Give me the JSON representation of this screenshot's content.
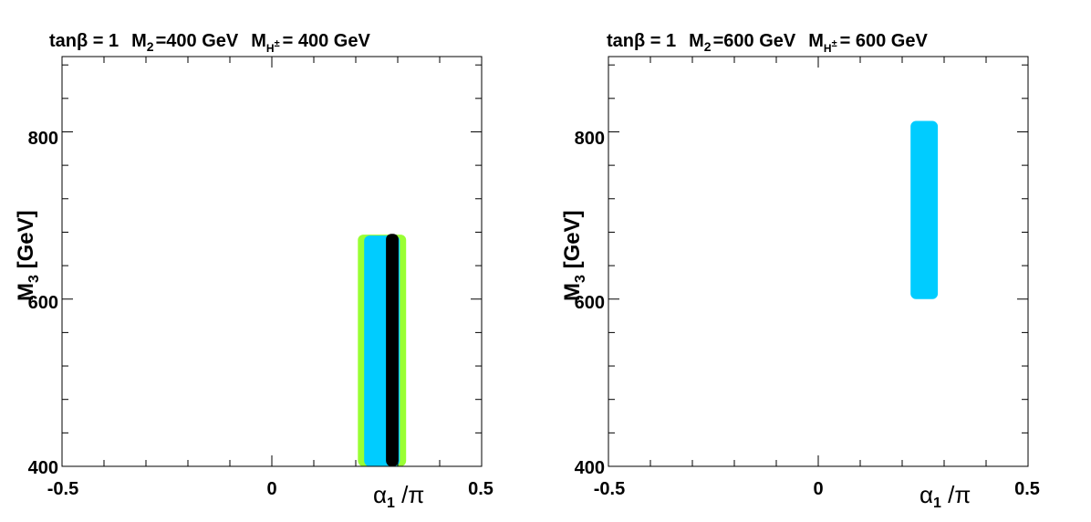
{
  "figure": {
    "background": "#ffffff"
  },
  "chart_data": [
    {
      "type": "scatter",
      "title": {
        "tanb_label": "tanβ = ",
        "tanb_value": "1",
        "m2_label": "M",
        "m2_sub": "2",
        "m2_value": "=400 GeV",
        "mh_label": "M",
        "mh_sub": "H",
        "mh_sup": "±",
        "mh_value": "= 400 GeV"
      },
      "xlabel": {
        "alpha": "α",
        "sub": "1",
        "rest": " /π"
      },
      "ylabel": {
        "main": "M",
        "sub": "3",
        "rest": " [GeV]"
      },
      "xlim": [
        -0.5,
        0.5
      ],
      "ylim": [
        400,
        890
      ],
      "xticks": [
        {
          "v": -0.5,
          "label": "-0.5"
        },
        {
          "v": 0,
          "label": "0"
        },
        {
          "v": 0.5,
          "label": "0.5"
        }
      ],
      "yticks": [
        {
          "v": 400,
          "label": "400"
        },
        {
          "v": 600,
          "label": "600"
        },
        {
          "v": 800,
          "label": "800"
        }
      ],
      "series": [
        {
          "name": "green region",
          "color": "#99ff33",
          "x": [
            0.205,
            0.32
          ],
          "y": [
            400,
            677
          ]
        },
        {
          "name": "blue region",
          "color": "#00ccff",
          "x": [
            0.22,
            0.305
          ],
          "y": [
            400,
            676
          ]
        },
        {
          "name": "black band",
          "color": "#000000",
          "x": [
            0.272,
            0.302
          ],
          "y": [
            400,
            678
          ]
        }
      ]
    },
    {
      "type": "scatter",
      "title": {
        "tanb_label": "tanβ = ",
        "tanb_value": "1",
        "m2_label": "M",
        "m2_sub": "2",
        "m2_value": "=600 GeV",
        "mh_label": "M",
        "mh_sub": "H",
        "mh_sup": "±",
        "mh_value": "= 600 GeV"
      },
      "xlabel": {
        "alpha": "α",
        "sub": "1",
        "rest": " /π"
      },
      "ylabel": {
        "main": "M",
        "sub": "3",
        "rest": " [GeV]"
      },
      "xlim": [
        -0.5,
        0.5
      ],
      "ylim": [
        400,
        890
      ],
      "xticks": [
        {
          "v": -0.5,
          "label": "-0.5"
        },
        {
          "v": 0,
          "label": "0"
        },
        {
          "v": 0.5,
          "label": "0.5"
        }
      ],
      "yticks": [
        {
          "v": 400,
          "label": "400"
        },
        {
          "v": 600,
          "label": "600"
        },
        {
          "v": 800,
          "label": "800"
        }
      ],
      "series": [
        {
          "name": "blue region",
          "color": "#00ccff",
          "x": [
            0.22,
            0.285
          ],
          "y": [
            600,
            813
          ]
        }
      ]
    }
  ]
}
